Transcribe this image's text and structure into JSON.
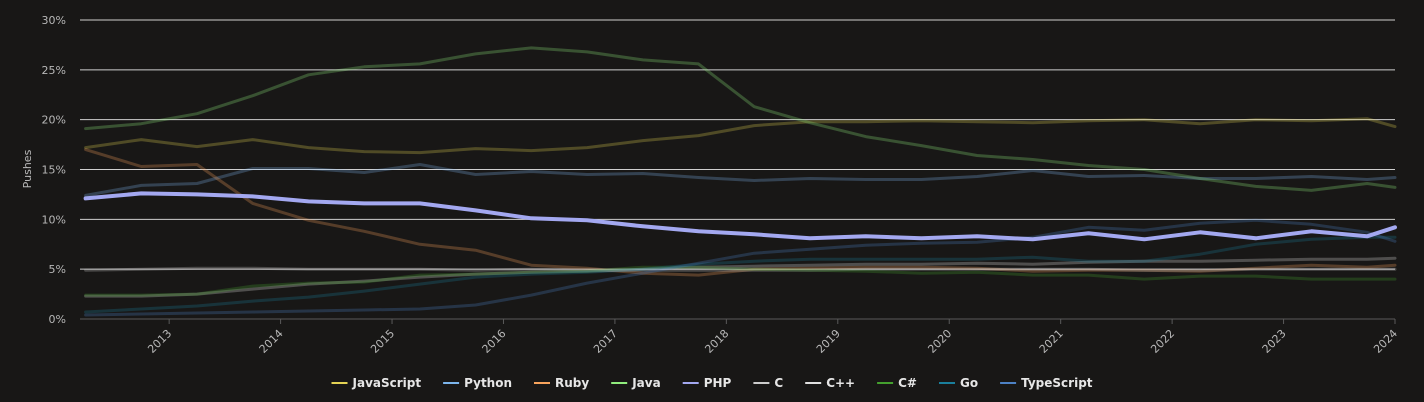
{
  "chart_data": {
    "type": "line",
    "ylabel": "Pushes",
    "ylim": [
      0,
      30
    ],
    "yticks": [
      "0%",
      "5%",
      "10%",
      "15%",
      "20%",
      "25%",
      "30%"
    ],
    "xticks": [
      "2013",
      "2014",
      "2015",
      "2016",
      "2017",
      "2018",
      "2019",
      "2020",
      "2021",
      "2022",
      "2023",
      "2024"
    ],
    "xlim": [
      "2012.2",
      "2024.0"
    ],
    "grid": true,
    "legend_position": "bottom",
    "highlighted_series": "PHP",
    "x": [
      2012.25,
      2012.75,
      2013.25,
      2013.75,
      2014.25,
      2014.75,
      2015.25,
      2015.75,
      2016.25,
      2016.75,
      2017.25,
      2017.75,
      2018.25,
      2018.75,
      2019.25,
      2019.75,
      2020.25,
      2020.75,
      2021.25,
      2021.75,
      2022.25,
      2022.75,
      2023.25,
      2023.75,
      2024.0
    ],
    "series": [
      {
        "name": "JavaScript",
        "color": "#e4d354",
        "values": [
          17.2,
          18.0,
          17.3,
          18.0,
          17.2,
          16.8,
          16.7,
          17.1,
          16.9,
          17.2,
          17.9,
          18.4,
          19.4,
          19.8,
          19.8,
          19.9,
          19.8,
          19.7,
          19.9,
          20.0,
          19.6,
          20.0,
          19.9,
          20.1,
          19.3
        ]
      },
      {
        "name": "Python",
        "color": "#7cb5ec",
        "values": [
          12.4,
          13.4,
          13.6,
          15.1,
          15.1,
          14.7,
          15.5,
          14.5,
          14.8,
          14.5,
          14.6,
          14.2,
          13.9,
          14.1,
          14.0,
          14.0,
          14.3,
          14.9,
          14.3,
          14.4,
          14.1,
          14.1,
          14.3,
          14.0,
          14.2
        ]
      },
      {
        "name": "Ruby",
        "color": "#f7a35c",
        "values": [
          17.0,
          15.3,
          15.5,
          11.6,
          9.9,
          8.8,
          7.5,
          6.9,
          5.4,
          5.1,
          4.6,
          4.4,
          5.0,
          5.1,
          5.2,
          5.2,
          5.1,
          4.8,
          4.9,
          4.9,
          4.8,
          5.1,
          5.4,
          5.2,
          5.4
        ]
      },
      {
        "name": "Java",
        "color": "#90ed7d",
        "values": [
          19.1,
          19.6,
          20.6,
          22.4,
          24.5,
          25.3,
          25.6,
          26.6,
          27.2,
          26.8,
          26.0,
          25.6,
          21.3,
          19.7,
          18.3,
          17.4,
          16.4,
          16.0,
          15.4,
          15.0,
          14.1,
          13.3,
          12.9,
          13.6,
          13.2
        ]
      },
      {
        "name": "PHP",
        "color": "#a3a8f0",
        "values": [
          12.1,
          12.6,
          12.5,
          12.3,
          11.8,
          11.6,
          11.6,
          10.9,
          10.1,
          9.9,
          9.3,
          8.8,
          8.5,
          8.1,
          8.3,
          8.1,
          8.3,
          8.0,
          8.6,
          8.0,
          8.7,
          8.1,
          8.8,
          8.3,
          9.2
        ]
      },
      {
        "name": "C",
        "color": "#cccccc",
        "values": [
          4.9,
          5.0,
          5.1,
          5.1,
          5.0,
          5.0,
          5.0,
          4.9,
          5.0,
          4.9,
          4.9,
          4.9,
          4.9,
          4.9,
          5.0,
          5.0,
          5.0,
          5.0,
          5.0,
          4.9,
          4.9,
          5.0,
          5.0,
          5.0,
          5.0
        ]
      },
      {
        "name": "C++",
        "color": "#e0e0e0",
        "values": [
          2.3,
          2.3,
          2.5,
          3.0,
          3.5,
          3.8,
          4.2,
          4.5,
          4.7,
          4.8,
          5.0,
          5.2,
          5.3,
          5.4,
          5.5,
          5.5,
          5.6,
          5.5,
          5.7,
          5.8,
          5.8,
          5.9,
          6.0,
          6.0,
          6.1
        ]
      },
      {
        "name": "C#",
        "color": "#44a02e",
        "values": [
          2.4,
          2.4,
          2.5,
          3.3,
          3.6,
          3.7,
          4.4,
          4.5,
          4.7,
          4.8,
          5.2,
          5.2,
          5.0,
          4.9,
          4.8,
          4.6,
          4.7,
          4.4,
          4.4,
          4.0,
          4.3,
          4.3,
          4.0,
          4.0,
          4.0
        ]
      },
      {
        "name": "Go",
        "color": "#1a7f9c",
        "values": [
          0.7,
          1.0,
          1.3,
          1.8,
          2.2,
          2.8,
          3.5,
          4.2,
          4.5,
          4.7,
          5.0,
          5.5,
          5.8,
          6.0,
          6.0,
          6.0,
          6.0,
          6.2,
          5.8,
          5.8,
          6.5,
          7.5,
          8.0,
          8.2,
          8.2
        ]
      },
      {
        "name": "TypeScript",
        "color": "#4d81c4",
        "values": [
          0.4,
          0.5,
          0.6,
          0.7,
          0.8,
          0.9,
          1.0,
          1.4,
          2.4,
          3.6,
          4.6,
          5.6,
          6.6,
          7.0,
          7.4,
          7.6,
          7.7,
          8.2,
          9.2,
          8.9,
          9.6,
          9.9,
          9.5,
          8.7,
          7.8
        ]
      }
    ]
  }
}
